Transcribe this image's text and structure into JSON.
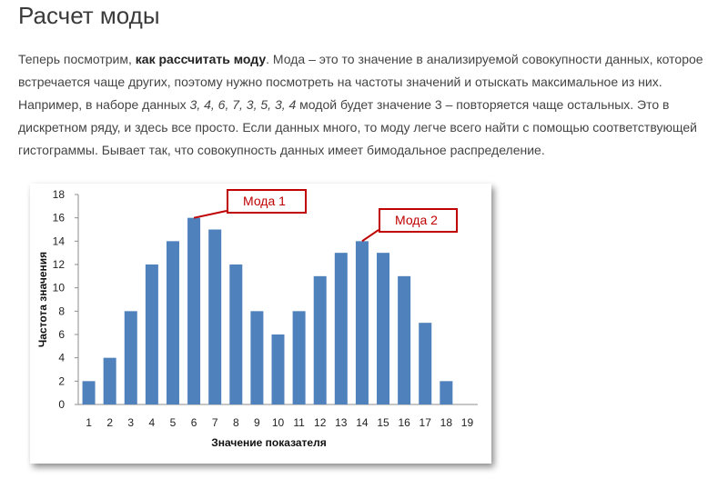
{
  "heading": "Расчет моды",
  "paragraph": {
    "line1_pre": "Теперь посмотрим, ",
    "line1_bold": "как рассчитать моду",
    "line1_post": ". Мода – это то значение в анализируемой совокупности данных, которое",
    "line2": "встречается чаще других, поэтому нужно посмотреть на частоты значений и отыскать максимальное из них.",
    "line3_pre": "Например, в наборе данных ",
    "line3_italic": "3, 4, 6, 7, 3, 5, 3, 4",
    "line3_post": " модой будет значение 3 – повторяется чаще остальных. Это в",
    "line4": "дискретном ряду, и здесь все просто. Если данных много, то моду легче всего найти с помощью соответствующей",
    "line5": "гистограммы. Бывает так, что совокупность данных имеет бимодальное распределение."
  },
  "chart_data": {
    "type": "bar",
    "categories": [
      "1",
      "2",
      "3",
      "4",
      "5",
      "6",
      "7",
      "8",
      "9",
      "10",
      "11",
      "12",
      "13",
      "14",
      "15",
      "16",
      "17",
      "18",
      "19"
    ],
    "values": [
      2,
      4,
      8,
      12,
      14,
      16,
      15,
      12,
      8,
      6,
      8,
      11,
      13,
      14,
      13,
      11,
      7,
      2,
      null
    ],
    "xlabel": "Значение показателя",
    "ylabel": "Частота значения",
    "ylim": [
      0,
      18
    ],
    "yticks": [
      0,
      2,
      4,
      6,
      8,
      10,
      12,
      14,
      16,
      18
    ],
    "grid": false,
    "bar_color": "#4f81bd",
    "annotations": [
      {
        "text": "Мода 1",
        "x": "6",
        "y": 16
      },
      {
        "text": "Мода 2",
        "x": "14",
        "y": 14
      }
    ],
    "annotation_color": "#c00000"
  }
}
